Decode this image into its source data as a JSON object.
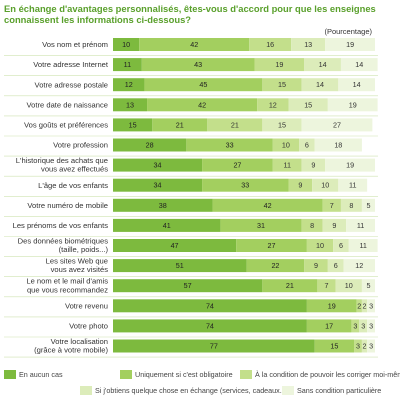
{
  "title": "En échange d'avantages personnalisés, êtes-vous d'accord pour que les enseignes connaissent les informations ci-dessous?",
  "unit": "(Pourcentage)",
  "colors": [
    "#7dba3e",
    "#a3cf5f",
    "#c3df8b",
    "#dcecba",
    "#edf5dd"
  ],
  "chart_data": {
    "type": "bar",
    "stacked": true,
    "orientation": "horizontal",
    "categories": [
      "Vos nom et prénom",
      "Votre adresse Internet",
      "Votre adresse postale",
      "Votre date de naissance",
      "Vos goûts et préférences",
      "Votre profession",
      "L'historique des achats que vous avez effectués",
      "L'âge de vos enfants",
      "Votre numéro de mobile",
      "Les prénoms de vos enfants",
      "Des données biométriques (taille, poids...)",
      "Les sites Web que vous avez visités",
      "Le nom et le mail d'amis que vous recommandez",
      "Votre revenu",
      "Votre photo",
      "Votre localisation (grâce à votre mobile)"
    ],
    "series": [
      {
        "name": "En aucun cas",
        "values": [
          10,
          11,
          12,
          13,
          15,
          28,
          34,
          34,
          38,
          41,
          47,
          51,
          57,
          74,
          74,
          77
        ]
      },
      {
        "name": "Uniquement si c'est obligatoire",
        "values": [
          42,
          43,
          45,
          42,
          21,
          33,
          27,
          33,
          42,
          31,
          27,
          22,
          21,
          19,
          17,
          15
        ]
      },
      {
        "name": "À la condition de pouvoir les corriger moi-même",
        "values": [
          16,
          19,
          15,
          12,
          21,
          10,
          11,
          9,
          7,
          8,
          10,
          9,
          7,
          2,
          3,
          3
        ]
      },
      {
        "name": "Si j'obtiens quelque chose en échange (services, cadeaux...)",
        "values": [
          13,
          14,
          14,
          15,
          15,
          6,
          9,
          10,
          8,
          9,
          6,
          6,
          10,
          2,
          3,
          2
        ]
      },
      {
        "name": "Sans condition particulière",
        "values": [
          19,
          14,
          14,
          19,
          27,
          18,
          19,
          11,
          5,
          11,
          11,
          12,
          5,
          3,
          3,
          3
        ]
      }
    ],
    "xlim": [
      0,
      100
    ]
  }
}
